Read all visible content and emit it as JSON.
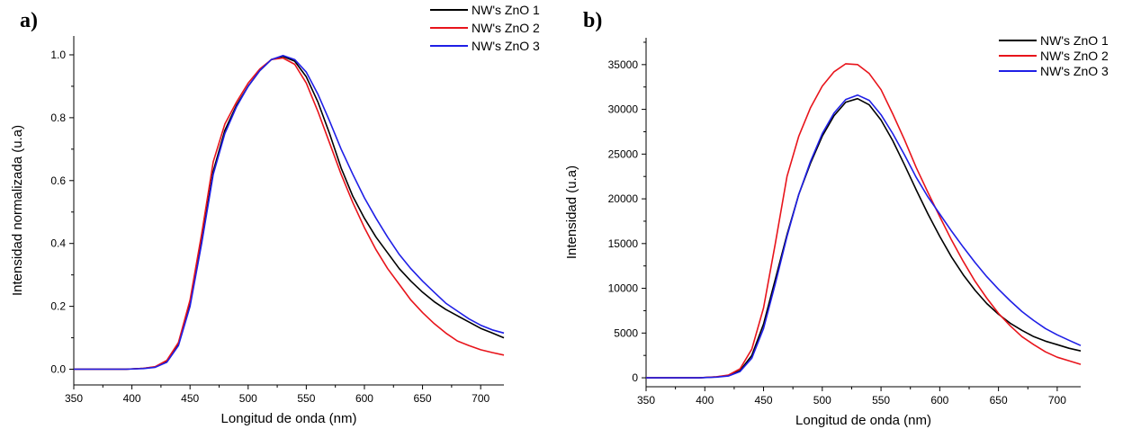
{
  "chart_data": [
    {
      "type": "line",
      "panel_label": "a)",
      "xlabel": "Longitud de onda (nm)",
      "ylabel": "Intensidad normalizada (u.a)",
      "xlim": [
        350,
        720
      ],
      "ylim": [
        -0.05,
        1.06
      ],
      "xticks": [
        350,
        400,
        450,
        500,
        550,
        600,
        650,
        700
      ],
      "yticks": [
        0.0,
        0.2,
        0.4,
        0.6,
        0.8,
        1.0
      ],
      "ytick_labels": [
        "0.0",
        "0.2",
        "0.4",
        "0.6",
        "0.8",
        "1.0"
      ],
      "grid": false,
      "legend_position": "top-right",
      "series": [
        {
          "name": "NW's ZnO 1",
          "color": "#000000",
          "x": [
            350,
            395,
            410,
            420,
            430,
            440,
            450,
            460,
            470,
            480,
            490,
            500,
            510,
            520,
            530,
            540,
            550,
            560,
            570,
            580,
            590,
            600,
            610,
            620,
            630,
            640,
            650,
            660,
            670,
            680,
            690,
            700,
            710,
            720
          ],
          "y": [
            0,
            0,
            0.003,
            0.007,
            0.025,
            0.08,
            0.21,
            0.41,
            0.63,
            0.76,
            0.84,
            0.9,
            0.95,
            0.985,
            0.995,
            0.98,
            0.93,
            0.85,
            0.75,
            0.64,
            0.55,
            0.48,
            0.42,
            0.37,
            0.32,
            0.28,
            0.245,
            0.215,
            0.19,
            0.17,
            0.15,
            0.13,
            0.115,
            0.1
          ]
        },
        {
          "name": "NW's ZnO 2",
          "color": "#e8141b",
          "x": [
            350,
            395,
            410,
            420,
            430,
            440,
            450,
            460,
            470,
            480,
            490,
            500,
            510,
            520,
            530,
            540,
            550,
            560,
            570,
            580,
            590,
            600,
            610,
            620,
            630,
            640,
            650,
            660,
            670,
            680,
            690,
            700,
            710,
            720
          ],
          "y": [
            0,
            0,
            0.003,
            0.008,
            0.028,
            0.085,
            0.22,
            0.43,
            0.66,
            0.78,
            0.85,
            0.91,
            0.955,
            0.985,
            0.99,
            0.97,
            0.91,
            0.82,
            0.72,
            0.62,
            0.53,
            0.45,
            0.38,
            0.32,
            0.27,
            0.22,
            0.18,
            0.145,
            0.115,
            0.09,
            0.075,
            0.062,
            0.053,
            0.045
          ]
        },
        {
          "name": "NW's ZnO 3",
          "color": "#1f1fe6",
          "x": [
            350,
            395,
            410,
            420,
            430,
            440,
            450,
            460,
            470,
            480,
            490,
            500,
            510,
            520,
            530,
            540,
            550,
            560,
            570,
            580,
            590,
            600,
            610,
            620,
            630,
            640,
            650,
            660,
            670,
            680,
            690,
            700,
            710,
            720
          ],
          "y": [
            0,
            0,
            0.002,
            0.006,
            0.022,
            0.075,
            0.2,
            0.4,
            0.62,
            0.75,
            0.835,
            0.9,
            0.95,
            0.985,
            0.998,
            0.985,
            0.945,
            0.875,
            0.79,
            0.7,
            0.62,
            0.545,
            0.48,
            0.42,
            0.365,
            0.32,
            0.28,
            0.245,
            0.21,
            0.185,
            0.16,
            0.14,
            0.125,
            0.115
          ]
        }
      ]
    },
    {
      "type": "line",
      "panel_label": "b)",
      "xlabel": "Longitud de onda (nm)",
      "ylabel": "Intensidad (u.a)",
      "xlim": [
        350,
        720
      ],
      "ylim": [
        -1000,
        38000
      ],
      "xticks": [
        350,
        400,
        450,
        500,
        550,
        600,
        650,
        700
      ],
      "yticks": [
        0,
        5000,
        10000,
        15000,
        20000,
        25000,
        30000,
        35000
      ],
      "ytick_labels": [
        "0",
        "5000",
        "10000",
        "15000",
        "20000",
        "25000",
        "30000",
        "35000"
      ],
      "grid": false,
      "legend_position": "top-right",
      "series": [
        {
          "name": "NW's ZnO 1",
          "color": "#000000",
          "x": [
            350,
            395,
            410,
            420,
            430,
            440,
            450,
            460,
            470,
            480,
            490,
            500,
            510,
            520,
            530,
            540,
            550,
            560,
            570,
            580,
            590,
            600,
            610,
            620,
            630,
            640,
            650,
            660,
            670,
            680,
            690,
            700,
            710,
            720
          ],
          "y": [
            0,
            0,
            100,
            250,
            800,
            2500,
            6000,
            11000,
            16000,
            20500,
            24000,
            27000,
            29300,
            30800,
            31200,
            30500,
            28800,
            26500,
            23800,
            21000,
            18300,
            15800,
            13500,
            11500,
            9800,
            8300,
            7100,
            6100,
            5300,
            4600,
            4100,
            3700,
            3300,
            3000
          ]
        },
        {
          "name": "NW's ZnO 2",
          "color": "#e8141b",
          "x": [
            350,
            395,
            410,
            420,
            430,
            440,
            450,
            460,
            470,
            480,
            490,
            500,
            510,
            520,
            530,
            540,
            550,
            560,
            570,
            580,
            590,
            600,
            610,
            620,
            630,
            640,
            650,
            660,
            670,
            680,
            690,
            700,
            710,
            720
          ],
          "y": [
            0,
            0,
            120,
            300,
            1000,
            3200,
            7800,
            15000,
            22500,
            27000,
            30200,
            32600,
            34200,
            35100,
            35000,
            34000,
            32200,
            29500,
            26600,
            23500,
            20700,
            18000,
            15400,
            13000,
            10800,
            8900,
            7200,
            5800,
            4600,
            3700,
            2900,
            2300,
            1900,
            1500
          ]
        },
        {
          "name": "NW's ZnO 3",
          "color": "#1f1fe6",
          "x": [
            350,
            395,
            410,
            420,
            430,
            440,
            450,
            460,
            470,
            480,
            490,
            500,
            510,
            520,
            530,
            540,
            550,
            560,
            570,
            580,
            590,
            600,
            610,
            620,
            630,
            640,
            650,
            660,
            670,
            680,
            690,
            700,
            710,
            720
          ],
          "y": [
            0,
            0,
            80,
            200,
            700,
            2200,
            5500,
            10500,
            15800,
            20500,
            24200,
            27300,
            29600,
            31100,
            31600,
            31000,
            29400,
            27300,
            24900,
            22400,
            20200,
            18300,
            16400,
            14600,
            12900,
            11300,
            9900,
            8600,
            7400,
            6400,
            5500,
            4800,
            4200,
            3600
          ]
        }
      ]
    }
  ]
}
